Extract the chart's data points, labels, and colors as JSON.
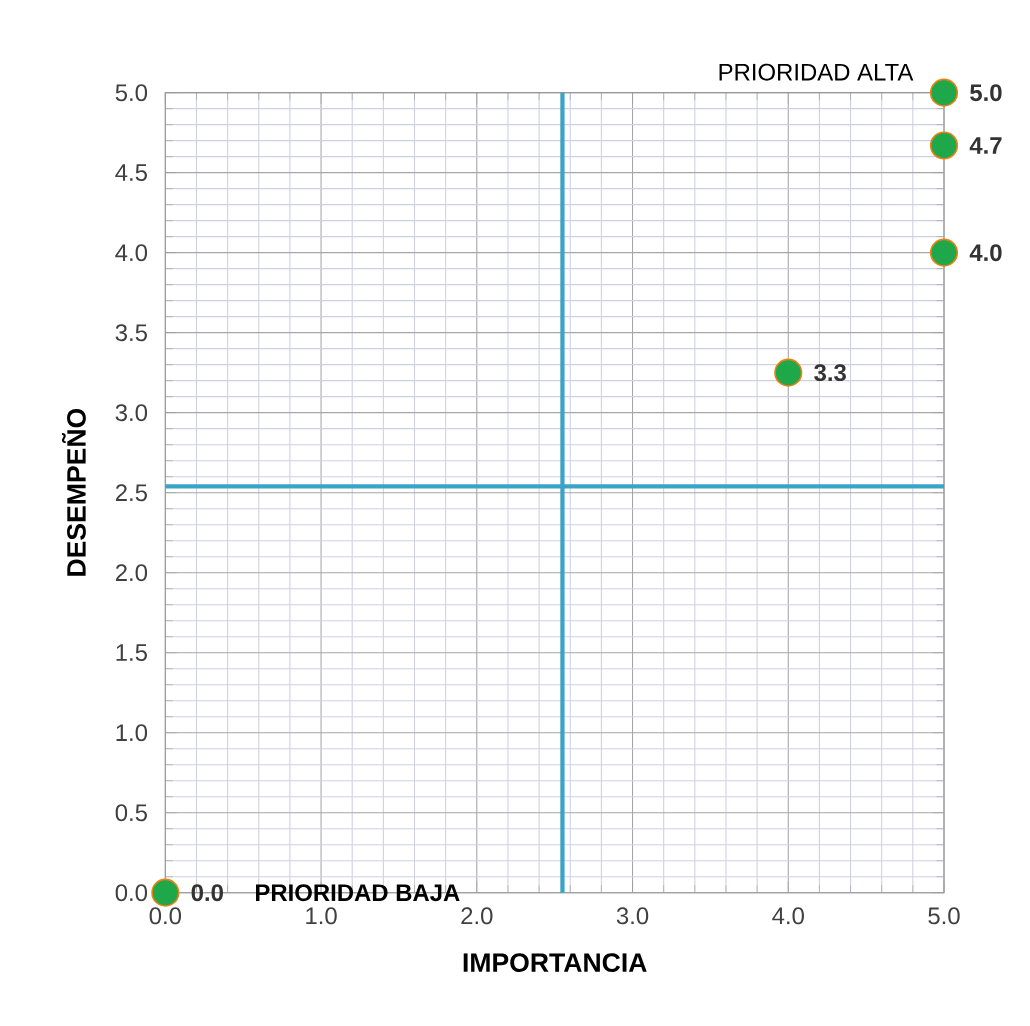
{
  "chart_data": {
    "type": "scatter",
    "xlabel": "IMPORTANCIA",
    "ylabel": "DESEMPEÑO",
    "x": [
      5,
      5,
      5,
      4,
      0
    ],
    "values": [
      5,
      4.67,
      4,
      3.25,
      0
    ],
    "value_labels": [
      "5.0",
      "4.7",
      "4.0",
      "3.3",
      "0.0"
    ],
    "color": "#1ea84a",
    "marker": "circle",
    "xlim": [
      0,
      5
    ],
    "ylim": [
      0,
      5
    ],
    "xticks": [
      {
        "value": 0,
        "label": "0.0"
      },
      {
        "value": 1,
        "label": "1.0"
      },
      {
        "value": 2,
        "label": "2.0"
      },
      {
        "value": 3,
        "label": "3.0"
      },
      {
        "value": 4,
        "label": "4.0"
      },
      {
        "value": 5,
        "label": "5.0"
      }
    ],
    "yticks": [
      {
        "value": 0,
        "label": "0.0"
      },
      {
        "value": 0.5,
        "label": "0.5"
      },
      {
        "value": 1,
        "label": "1.0"
      },
      {
        "value": 1.5,
        "label": "1.5"
      },
      {
        "value": 2,
        "label": "2.0"
      },
      {
        "value": 2.5,
        "label": "2.5"
      },
      {
        "value": 3,
        "label": "3.0"
      },
      {
        "value": 3.5,
        "label": "3.5"
      },
      {
        "value": 4,
        "label": "4.0"
      },
      {
        "value": 4.5,
        "label": "4.5"
      },
      {
        "value": 5,
        "label": "5.0"
      }
    ],
    "grid": true,
    "ref_lines": [
      {
        "axis": "x",
        "value": 2.55,
        "color": "#3ba3c8"
      },
      {
        "axis": "y",
        "value": 2.54,
        "color": "#3ba3c8"
      }
    ],
    "annotations": [
      "PRIORIDAD ALTA",
      "PRIORIDAD BAJA"
    ]
  }
}
